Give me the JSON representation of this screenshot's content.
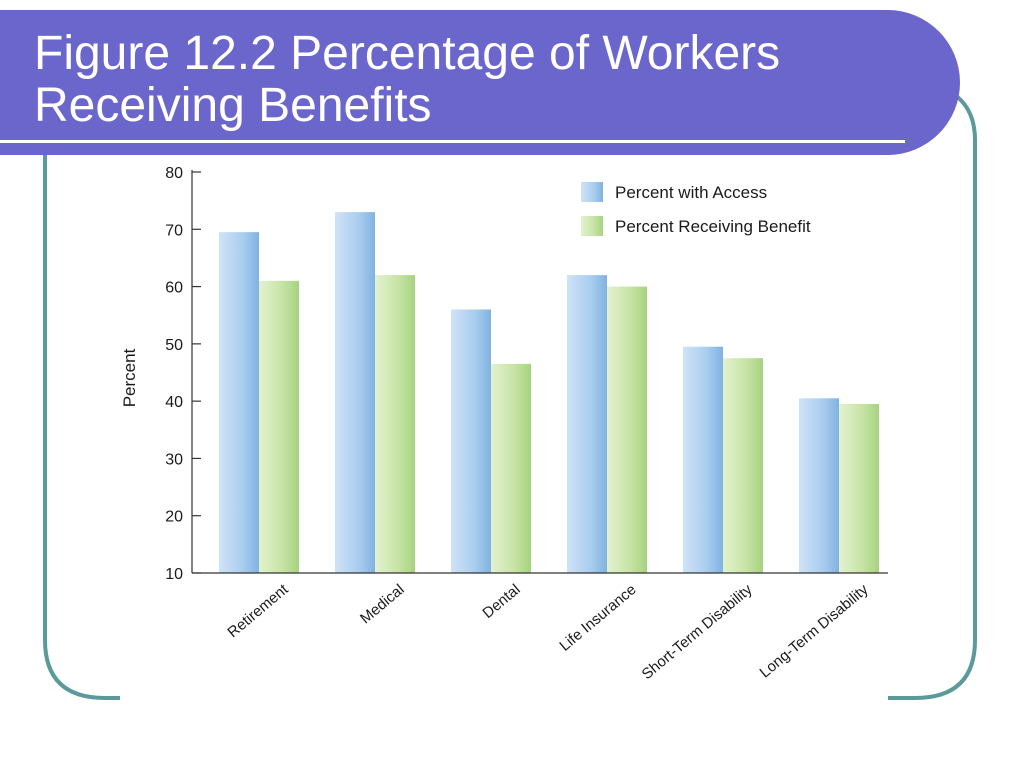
{
  "slide": {
    "title_line1": "Figure 12.2  Percentage of Workers",
    "title_line2": "Receiving Benefits",
    "banner_color": "#6b66cc",
    "frame_color": "#5c9a9a"
  },
  "chart_data": {
    "type": "bar",
    "categories": [
      "Retirement",
      "Medical",
      "Dental",
      "Life Insurance",
      "Short-Term Disability",
      "Long-Term Disability"
    ],
    "series": [
      {
        "name": "Percent with Access",
        "values": [
          69.5,
          73,
          56,
          62,
          49.5,
          40.5
        ],
        "color": "#a9cdee"
      },
      {
        "name": "Percent Receiving Benefit",
        "values": [
          61,
          62,
          46.5,
          60,
          47.5,
          39.5
        ],
        "color": "#c6e3a4"
      }
    ],
    "title": "",
    "xlabel": "",
    "ylabel": "Percent",
    "ylim": [
      10,
      80
    ],
    "yticks": [
      10,
      20,
      30,
      40,
      50,
      60,
      70,
      80
    ],
    "legend_position": "top-right",
    "grid": false
  }
}
